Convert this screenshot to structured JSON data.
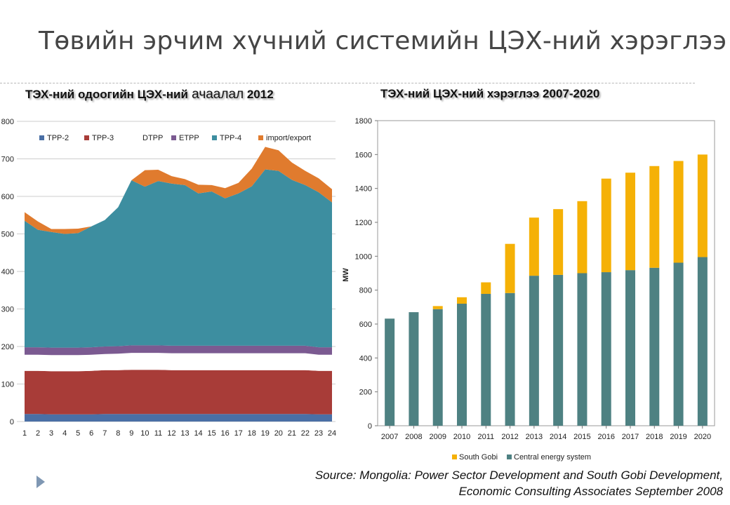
{
  "slide": {
    "title": "Төвийн эрчим хүчний системийн ЦЭХ-ний хэрэглээ",
    "source_line1": "Source: Mongolia: Power Sector Development and South Gobi Development,",
    "source_line2": "Economic Consulting Associates September 2008"
  },
  "chart_data": [
    {
      "type": "area",
      "title": "ТЭХ-ний одоогийн ЦЭХ-ний ачаалал 2012",
      "title_parts": [
        "ТЭХ-ний одоогийн ЦЭХ-ний",
        " ачаалал",
        " 2012"
      ],
      "stacked": true,
      "x": [
        1,
        2,
        3,
        4,
        5,
        6,
        7,
        8,
        9,
        10,
        11,
        12,
        13,
        14,
        15,
        16,
        17,
        18,
        19,
        20,
        21,
        22,
        23,
        24
      ],
      "x_ticks": [
        "1",
        "2",
        "3",
        "4",
        "5",
        "6",
        "7",
        "8",
        "9",
        "10",
        "11",
        "12",
        "13",
        "14",
        "15",
        "16",
        "17",
        "18",
        "19",
        "20",
        "21",
        "22",
        "23",
        "24"
      ],
      "y_ticks": [
        "0",
        "100",
        "200",
        "300",
        "400",
        "500",
        "600",
        "700",
        "800"
      ],
      "ylim": [
        0,
        800
      ],
      "legend_position": "top",
      "series": [
        {
          "name": "TPP-2",
          "color": "#4a6fa5",
          "values": [
            20,
            20,
            19,
            19,
            19,
            19,
            20,
            20,
            20,
            20,
            20,
            20,
            20,
            20,
            20,
            20,
            20,
            20,
            20,
            20,
            20,
            20,
            19,
            19
          ]
        },
        {
          "name": "TPP-3",
          "color": "#a83c38",
          "values": [
            115,
            115,
            115,
            115,
            115,
            116,
            117,
            117,
            118,
            118,
            118,
            117,
            117,
            117,
            117,
            117,
            117,
            117,
            117,
            117,
            117,
            117,
            116,
            116
          ]
        },
        {
          "name": "DTPP",
          "color": "#ffffff",
          "values": [
            43,
            43,
            43,
            43,
            43,
            43,
            43,
            44,
            45,
            45,
            45,
            45,
            45,
            45,
            45,
            45,
            45,
            45,
            45,
            45,
            45,
            45,
            43,
            43
          ]
        },
        {
          "name": "ETPP",
          "color": "#7b5a91",
          "values": [
            20,
            20,
            20,
            20,
            20,
            20,
            20,
            20,
            20,
            20,
            20,
            20,
            20,
            20,
            20,
            20,
            20,
            20,
            20,
            20,
            20,
            20,
            20,
            20
          ]
        },
        {
          "name": "TPP-4",
          "color": "#3d8ea0",
          "values": [
            337,
            313,
            308,
            303,
            305,
            322,
            337,
            370,
            440,
            423,
            438,
            432,
            428,
            406,
            411,
            393,
            406,
            425,
            470,
            466,
            442,
            428,
            413,
            386
          ]
        },
        {
          "name": "import/export",
          "color": "#e07b2e",
          "values": [
            23,
            22,
            8,
            13,
            12,
            0,
            0,
            0,
            0,
            44,
            30,
            20,
            16,
            23,
            17,
            27,
            28,
            47,
            60,
            55,
            46,
            38,
            37,
            35
          ]
        }
      ]
    },
    {
      "type": "bar",
      "title": "ТЭХ-ний ЦЭХ-ний хэрэглээ 2007-2020",
      "stacked": true,
      "categories": [
        "2007",
        "2008",
        "2009",
        "2010",
        "2011",
        "2012",
        "2013",
        "2014",
        "2015",
        "2016",
        "2017",
        "2018",
        "2019",
        "2020"
      ],
      "y_ticks": [
        "0",
        "200",
        "400",
        "600",
        "800",
        "1000",
        "1200",
        "1400",
        "1600",
        "1800"
      ],
      "ylabel": "MW",
      "ylim": [
        0,
        1800
      ],
      "legend_position": "bottom",
      "series": [
        {
          "name": "Central energy system",
          "color": "#4e8182",
          "values": [
            632,
            670,
            688,
            720,
            778,
            783,
            885,
            890,
            900,
            906,
            918,
            932,
            962,
            995
          ]
        },
        {
          "name": "South Gobi",
          "color": "#f5b106",
          "values": [
            0,
            0,
            18,
            38,
            68,
            290,
            343,
            388,
            425,
            552,
            575,
            600,
            600,
            605
          ]
        }
      ]
    }
  ]
}
